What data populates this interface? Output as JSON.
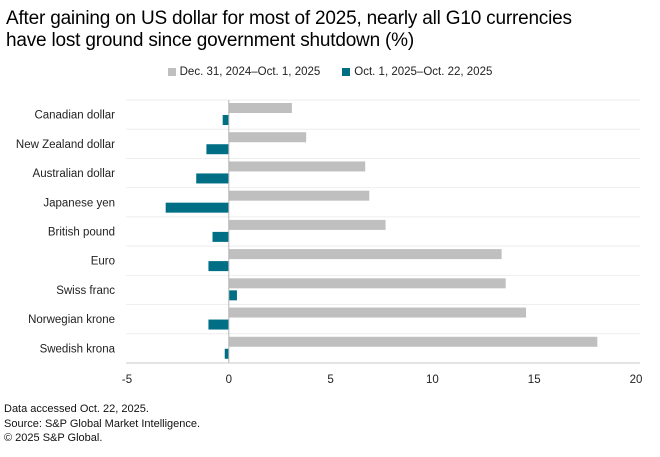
{
  "title_lines": [
    "After gaining on US dollar for most of 2025, nearly all G10 currencies",
    "have lost ground since government shutdown (%)"
  ],
  "legend": [
    {
      "label": "Dec. 31, 2024–Oct. 1, 2025",
      "color": "#bfbfbf"
    },
    {
      "label": "Oct. 1, 2025–Oct. 22, 2025",
      "color": "#006f86"
    }
  ],
  "footer": [
    "Data accessed Oct. 22, 2025.",
    "Source: S&P Global Market Intelligence.",
    "© 2025 S&P Global."
  ],
  "chart_data": {
    "type": "bar",
    "orientation": "horizontal",
    "title": "After gaining on US dollar for most of 2025, nearly all G10 currencies have lost ground since government shutdown (%)",
    "xlabel": "",
    "ylabel": "",
    "categories": [
      "Canadian dollar",
      "New Zealand dollar",
      "Australian dollar",
      "Japanese yen",
      "British pound",
      "Euro",
      "Swiss franc",
      "Norwegian krone",
      "Swedish krona"
    ],
    "series": [
      {
        "name": "Dec. 31, 2024–Oct. 1, 2025",
        "color": "#bfbfbf",
        "values": [
          3.1,
          3.8,
          6.7,
          6.9,
          7.7,
          13.4,
          13.6,
          14.6,
          18.1
        ]
      },
      {
        "name": "Oct. 1, 2025–Oct. 22, 2025",
        "color": "#006f86",
        "values": [
          -0.3,
          -1.1,
          -1.6,
          -3.1,
          -0.8,
          -1.0,
          0.4,
          -1.0,
          -0.2
        ]
      }
    ],
    "xlim": [
      -5,
      20
    ],
    "xticks": [
      -5,
      0,
      5,
      10,
      15,
      20
    ],
    "grid": "horizontal row separators",
    "legend_position": "top-center"
  }
}
